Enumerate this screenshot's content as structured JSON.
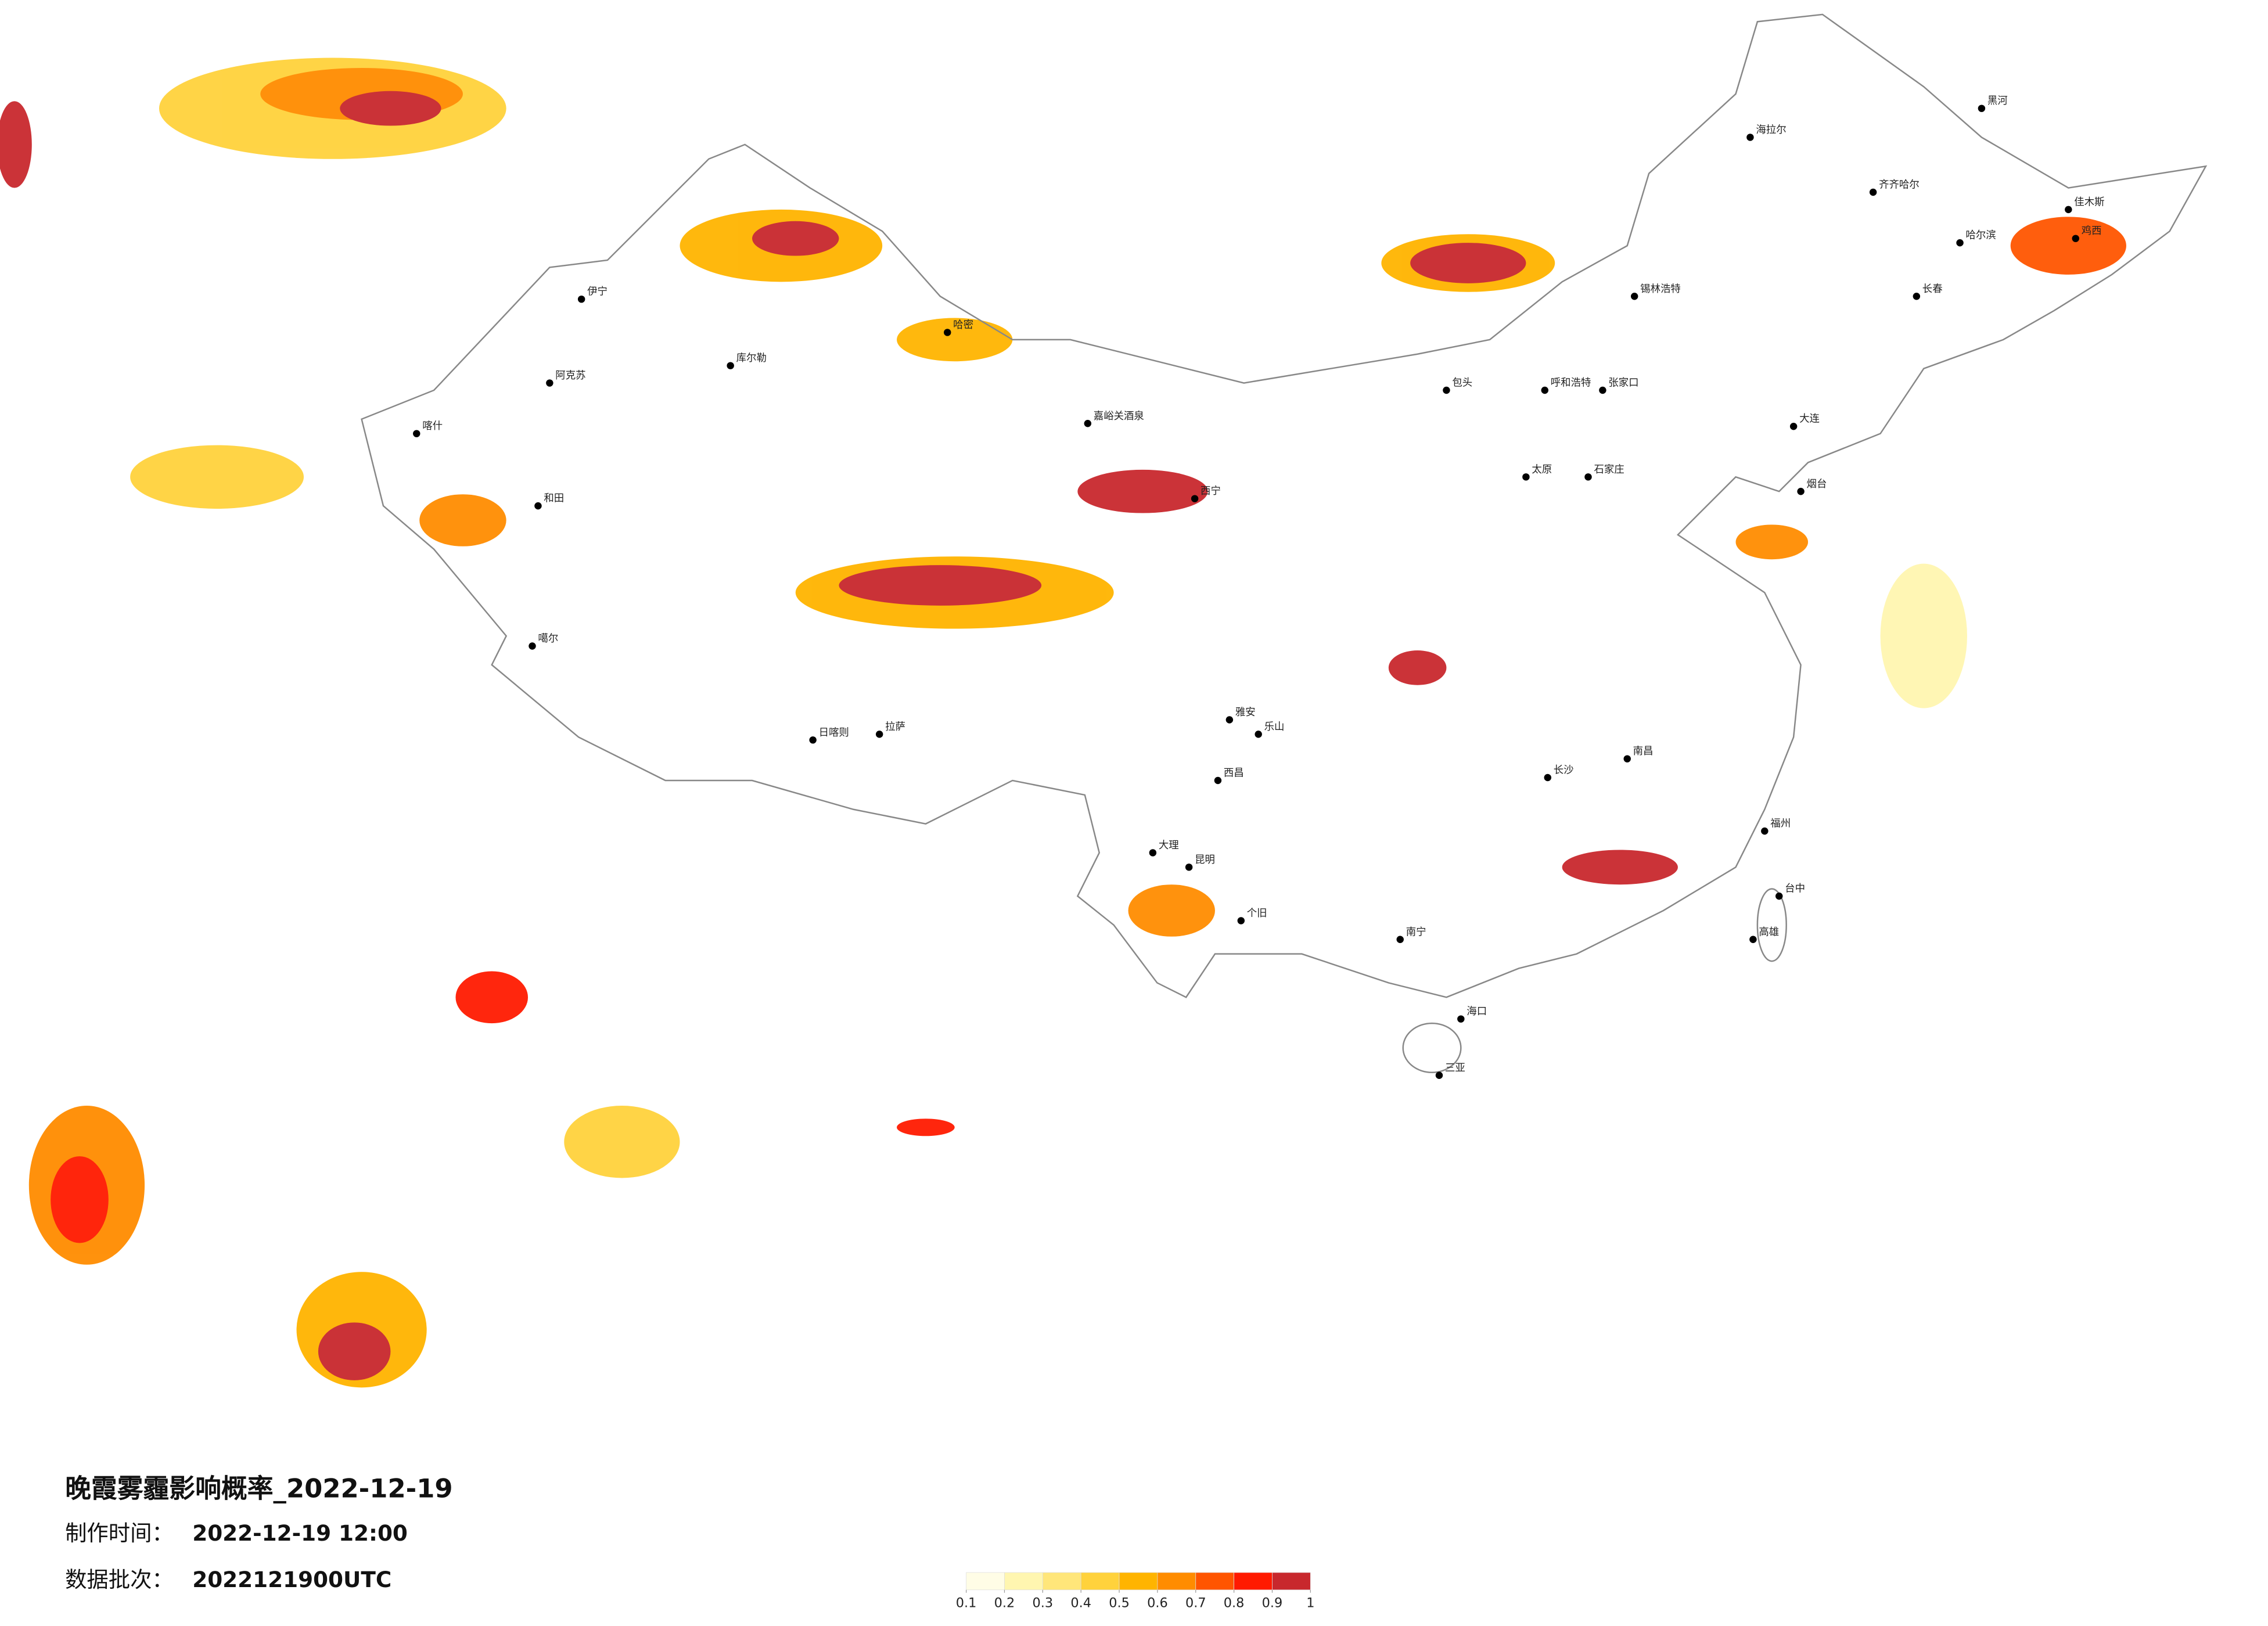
{
  "title": "晚霞雾霾影响概率_2022-12-19",
  "made_time": {
    "label": "制作时间：",
    "value": "2022-12-19 12:00"
  },
  "batch": {
    "label": "数据批次：",
    "value": "2022121900UTC"
  },
  "legend": {
    "ticks": [
      0.1,
      0.2,
      0.3,
      0.4,
      0.5,
      0.6,
      0.7,
      0.8,
      0.9,
      1
    ],
    "colors": [
      "#fffde6",
      "#fff6b0",
      "#ffe67a",
      "#ffd23c",
      "#ffb400",
      "#ff8c00",
      "#ff5500",
      "#ff1a00",
      "#c8282d"
    ]
  },
  "cities": [
    "海拉尔",
    "齐齐哈尔",
    "哈尔滨",
    "长春",
    "黑河",
    "佳木斯",
    "鸡西",
    "锡林浩特",
    "伊宁",
    "阿克苏",
    "喀什",
    "和田",
    "库尔勒",
    "哈密",
    "嘉峪关酒泉",
    "西宁",
    "噶尔",
    "日喀则",
    "拉萨",
    "乐山",
    "雅安",
    "西昌",
    "昆明",
    "大理",
    "个旧",
    "南宁",
    "海口",
    "三亚",
    "福州",
    "台中",
    "高雄",
    "南昌",
    "长沙",
    "张家口",
    "呼和浩特",
    "包头",
    "石家庄",
    "太原",
    "烟台",
    "大连"
  ]
}
